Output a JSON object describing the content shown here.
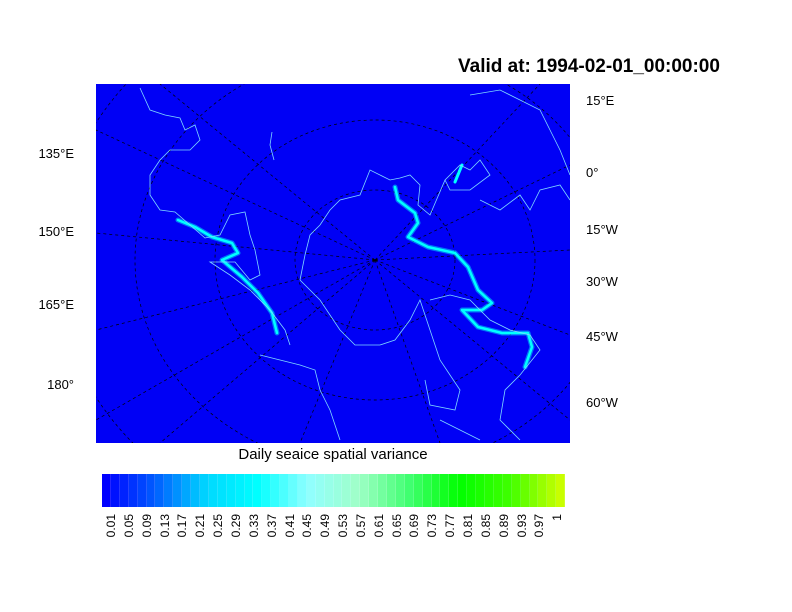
{
  "title": "Valid at: 1994-02-01_00:00:00",
  "map": {
    "background_color": "#0000F5",
    "coastline_color": "#7FD8FF",
    "ice_color": "#00FFFF",
    "left_labels": [
      "135°E",
      "150°E",
      "165°E",
      "180°"
    ],
    "right_labels": [
      "15°E",
      "0°",
      "15°W",
      "30°W",
      "45°W",
      "60°W"
    ]
  },
  "colorbar": {
    "label": "Daily seaice spatial variance",
    "tick_labels": [
      "0.01",
      "0.05",
      "0.09",
      "0.13",
      "0.17",
      "0.21",
      "0.25",
      "0.29",
      "0.33",
      "0.37",
      "0.41",
      "0.45",
      "0.49",
      "0.53",
      "0.57",
      "0.61",
      "0.65",
      "0.69",
      "0.73",
      "0.77",
      "0.81",
      "0.85",
      "0.89",
      "0.93",
      "0.97",
      "1"
    ],
    "color_stops": [
      "#0000FF",
      "#0060FF",
      "#00D8FF",
      "#00FFFF",
      "#90FFFF",
      "#A0FFC8",
      "#40FF70",
      "#00FF00",
      "#40FF00",
      "#C8FF00"
    ]
  }
}
